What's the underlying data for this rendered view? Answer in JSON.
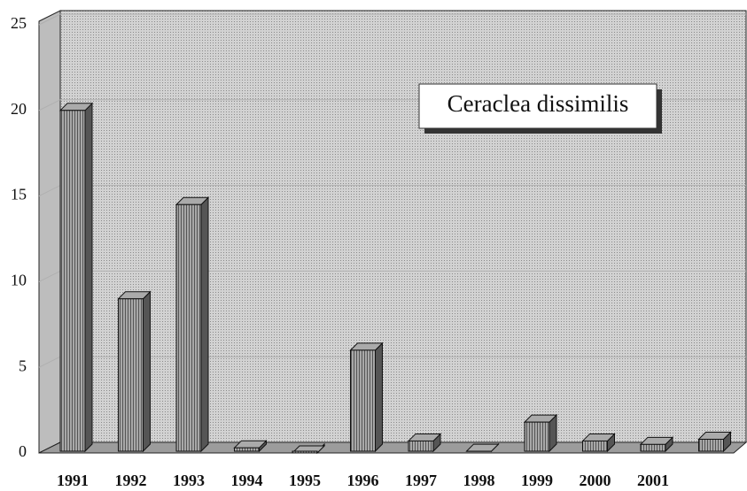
{
  "chart_data": {
    "type": "bar3d",
    "title": "Ceraclea dissimilis",
    "categories": [
      "1991",
      "1992",
      "1993",
      "1994",
      "1995",
      "1996",
      "1997",
      "1998",
      "1999",
      "2000",
      "2001",
      null
    ],
    "values": [
      20,
      9,
      14.5,
      0.3,
      0,
      6,
      0.7,
      0.1,
      1.8,
      0.7,
      0.5,
      0.8
    ],
    "color": "#8c8c8c",
    "ylim": [
      0,
      25
    ],
    "yticks": [
      0,
      5,
      10,
      15,
      20,
      25
    ],
    "grid": true
  }
}
